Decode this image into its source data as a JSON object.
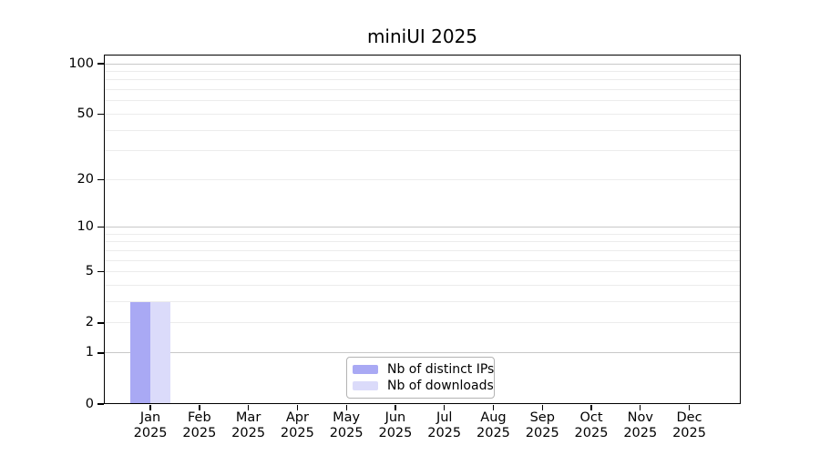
{
  "figure": {
    "background": "#ffffff"
  },
  "chart_data": {
    "type": "bar",
    "title": "miniUI 2025",
    "x": {
      "categories": [
        "Jan",
        "Feb",
        "Mar",
        "Apr",
        "May",
        "Jun",
        "Jul",
        "Aug",
        "Sep",
        "Oct",
        "Nov",
        "Dec"
      ],
      "year_label": "2025"
    },
    "y": {
      "scale": "log1p",
      "ticks": [
        0,
        1,
        2,
        5,
        10,
        20,
        50,
        100
      ],
      "ylim": [
        0,
        113
      ],
      "grid": true
    },
    "series": [
      {
        "name": "Nb of distinct IPs",
        "color": "#a9a9f4",
        "values": [
          3,
          0,
          0,
          0,
          0,
          0,
          0,
          0,
          0,
          0,
          0,
          0
        ]
      },
      {
        "name": "Nb of downloads",
        "color": "#dbdbfa",
        "values": [
          3,
          0,
          0,
          0,
          0,
          0,
          0,
          0,
          0,
          0,
          0,
          0
        ]
      }
    ],
    "legend": {
      "position": "lower center"
    }
  },
  "colors": {
    "grid_minor": "#ececec",
    "grid_major_decade": "#c8c8c8",
    "axis": "#000000",
    "legend_border": "#b3b3b3"
  }
}
